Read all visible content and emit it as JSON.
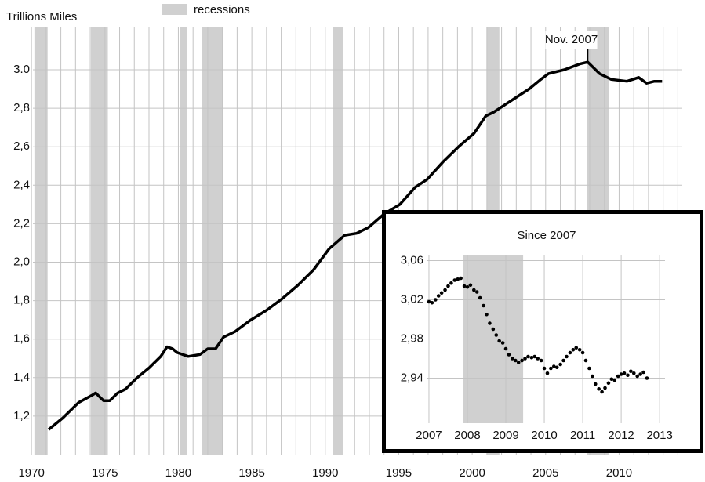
{
  "chart_data": [
    {
      "type": "line",
      "y_label": "Trillions Miles",
      "legend_label": "recessions",
      "recession_color": "#d0d0d0",
      "color": "#000000",
      "annotation": {
        "text": "Nov. 2007",
        "x": 2007.87
      },
      "recessions": [
        [
          1970.2,
          1971.1
        ],
        [
          1974.05,
          1975.2
        ],
        [
          1980.1,
          1980.6
        ],
        [
          1981.6,
          1983.0
        ],
        [
          1990.5,
          1991.2
        ],
        [
          2001.0,
          2001.85
        ],
        [
          2007.8,
          2009.3
        ]
      ],
      "x": [
        1971.17,
        1972.13,
        1973.2,
        1974.16,
        1974.37,
        1974.91,
        1975.33,
        1975.87,
        1976.4,
        1977.2,
        1978.0,
        1978.8,
        1979.23,
        1979.6,
        1979.92,
        1980.67,
        1981.47,
        1982.0,
        1982.53,
        1983.07,
        1983.87,
        1984.93,
        1986.0,
        1987.07,
        1988.13,
        1989.2,
        1990.27,
        1991.33,
        1992.13,
        1992.93,
        1994.0,
        1995.07,
        1996.13,
        1996.93,
        1998.0,
        1999.07,
        2000.13,
        2000.93,
        2001.47,
        2002.27,
        2003.07,
        2003.87,
        2004.67,
        2005.2,
        2006.27,
        2007.33,
        2007.87,
        2008.67,
        2009.47,
        2010.53,
        2011.33,
        2011.87,
        2012.4,
        2012.93
      ],
      "values": [
        1.13,
        1.19,
        1.27,
        1.31,
        1.32,
        1.28,
        1.28,
        1.32,
        1.34,
        1.4,
        1.45,
        1.51,
        1.56,
        1.55,
        1.53,
        1.51,
        1.52,
        1.55,
        1.55,
        1.61,
        1.64,
        1.7,
        1.75,
        1.81,
        1.88,
        1.96,
        2.07,
        2.14,
        2.15,
        2.18,
        2.25,
        2.3,
        2.39,
        2.43,
        2.52,
        2.6,
        2.67,
        2.76,
        2.78,
        2.82,
        2.86,
        2.9,
        2.95,
        2.98,
        3.0,
        3.03,
        3.04,
        2.98,
        2.95,
        2.94,
        2.96,
        2.93,
        2.94,
        2.94
      ],
      "xlim": [
        1970.1,
        2014.3
      ],
      "ylim": [
        1.0,
        3.22
      ],
      "xticks": [
        1970,
        1975,
        1980,
        1985,
        1990,
        1995,
        2000,
        2005,
        2010
      ],
      "xminor": [
        1971,
        1972,
        1973,
        1974,
        1976,
        1977,
        1978,
        1979,
        1981,
        1982,
        1983,
        1984,
        1986,
        1987,
        1988,
        1989,
        1991,
        1992,
        1993,
        1994,
        1996,
        1997,
        1998,
        1999,
        2001,
        2002,
        2003,
        2004,
        2006,
        2007,
        2008,
        2009,
        2011,
        2012,
        2013,
        2014
      ],
      "yticks": [
        {
          "value": 1.2,
          "label": "1,2"
        },
        {
          "value": 1.4,
          "label": "1,4"
        },
        {
          "value": 1.6,
          "label": "1,6"
        },
        {
          "value": 1.8,
          "label": "1,8"
        },
        {
          "value": 2.0,
          "label": "2,0"
        },
        {
          "value": 2.2,
          "label": "2,2"
        },
        {
          "value": 2.4,
          "label": "2,4"
        },
        {
          "value": 2.6,
          "label": "2,6"
        },
        {
          "value": 2.8,
          "label": "2,8"
        },
        {
          "value": 3.0,
          "label": "3.0"
        }
      ],
      "grid": true
    },
    {
      "type": "scatter",
      "title": "Since 2007",
      "color": "#000000",
      "recession_color": "#d0d0d0",
      "recessions": [
        [
          2007.88,
          2009.45
        ]
      ],
      "x": [
        2007.0,
        2007.08,
        2007.17,
        2007.25,
        2007.33,
        2007.42,
        2007.5,
        2007.58,
        2007.67,
        2007.75,
        2007.83,
        2007.92,
        2008.0,
        2008.08,
        2008.17,
        2008.25,
        2008.33,
        2008.42,
        2008.5,
        2008.58,
        2008.67,
        2008.75,
        2008.83,
        2008.92,
        2009.0,
        2009.08,
        2009.17,
        2009.25,
        2009.33,
        2009.42,
        2009.5,
        2009.58,
        2009.67,
        2009.75,
        2009.83,
        2009.92,
        2010.0,
        2010.08,
        2010.17,
        2010.25,
        2010.33,
        2010.42,
        2010.5,
        2010.58,
        2010.67,
        2010.75,
        2010.83,
        2010.92,
        2011.0,
        2011.08,
        2011.17,
        2011.25,
        2011.33,
        2011.42,
        2011.5,
        2011.58,
        2011.67,
        2011.75,
        2011.83,
        2011.92,
        2012.0,
        2012.08,
        2012.17,
        2012.25,
        2012.33,
        2012.42,
        2012.5,
        2012.58,
        2012.67
      ],
      "values": [
        3.018,
        3.017,
        3.02,
        3.024,
        3.027,
        3.03,
        3.034,
        3.037,
        3.04,
        3.041,
        3.042,
        3.034,
        3.033,
        3.035,
        3.03,
        3.028,
        3.022,
        3.014,
        3.005,
        2.996,
        2.99,
        2.984,
        2.978,
        2.976,
        2.97,
        2.964,
        2.96,
        2.958,
        2.956,
        2.958,
        2.96,
        2.962,
        2.961,
        2.962,
        2.96,
        2.958,
        2.95,
        2.945,
        2.95,
        2.952,
        2.951,
        2.954,
        2.958,
        2.962,
        2.966,
        2.969,
        2.971,
        2.969,
        2.966,
        2.958,
        2.95,
        2.942,
        2.934,
        2.929,
        2.926,
        2.93,
        2.935,
        2.939,
        2.938,
        2.942,
        2.944,
        2.945,
        2.943,
        2.947,
        2.945,
        2.942,
        2.944,
        2.946,
        2.94
      ],
      "xlim": [
        2006.96,
        2013.14
      ],
      "ylim": [
        2.894,
        3.066
      ],
      "xticks": [
        2007,
        2008,
        2009,
        2010,
        2011,
        2012,
        2013
      ],
      "yticks": [
        {
          "value": 2.94,
          "label": "2,94"
        },
        {
          "value": 2.98,
          "label": "2,98"
        },
        {
          "value": 3.02,
          "label": "3,02"
        },
        {
          "value": 3.06,
          "label": "3,06"
        }
      ],
      "grid": true
    }
  ]
}
